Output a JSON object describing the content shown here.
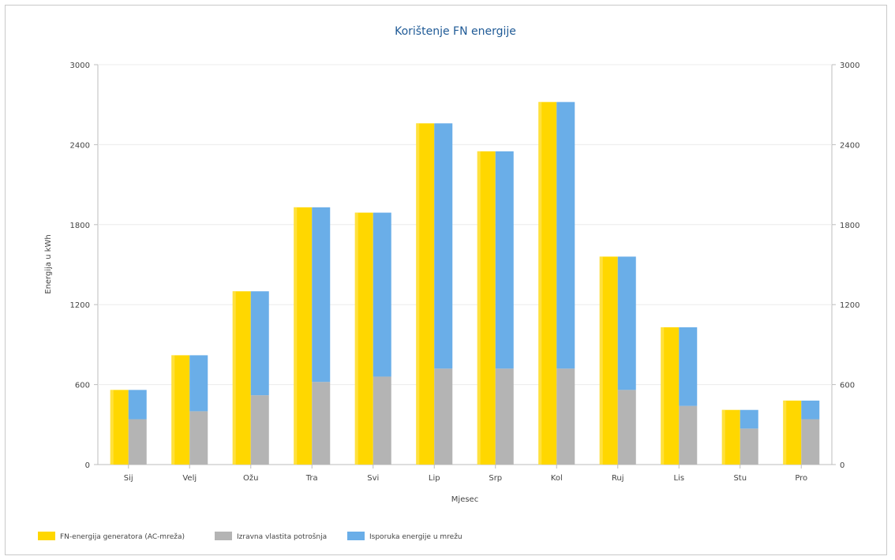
{
  "chart_data": {
    "type": "bar",
    "title": "Korištenje FN energije",
    "xlabel": "Mjesec",
    "ylabel": "Energija u kWh",
    "ylim": [
      0,
      3000
    ],
    "yticks": [
      "0",
      "600",
      "1200",
      "1800",
      "2400",
      "3000"
    ],
    "categories": [
      "Sij",
      "Velj",
      "Ožu",
      "Tra",
      "Svi",
      "Lip",
      "Srp",
      "Kol",
      "Ruj",
      "Lis",
      "Stu",
      "Pro"
    ],
    "series": [
      {
        "name": "FN-energija generatora (AC-mreža)",
        "color": "#FFD700",
        "values": [
          560,
          820,
          1300,
          1930,
          1890,
          2560,
          2350,
          2720,
          1560,
          1030,
          410,
          480
        ]
      },
      {
        "name": "Izravna vlastita potrošnja",
        "color": "#B4B4B4",
        "values": [
          340,
          400,
          520,
          620,
          660,
          720,
          720,
          720,
          560,
          440,
          270,
          340
        ]
      },
      {
        "name": "Isporuka energije u mrežu",
        "color": "#6AAEE8",
        "values": [
          220,
          420,
          780,
          1310,
          1230,
          1840,
          1630,
          2000,
          1000,
          590,
          140,
          140
        ]
      }
    ],
    "stacked_right": [
      "Izravna vlastita potrošnja",
      "Isporuka energije u mrežu"
    ],
    "grid": true,
    "legend": "bottom-left"
  }
}
